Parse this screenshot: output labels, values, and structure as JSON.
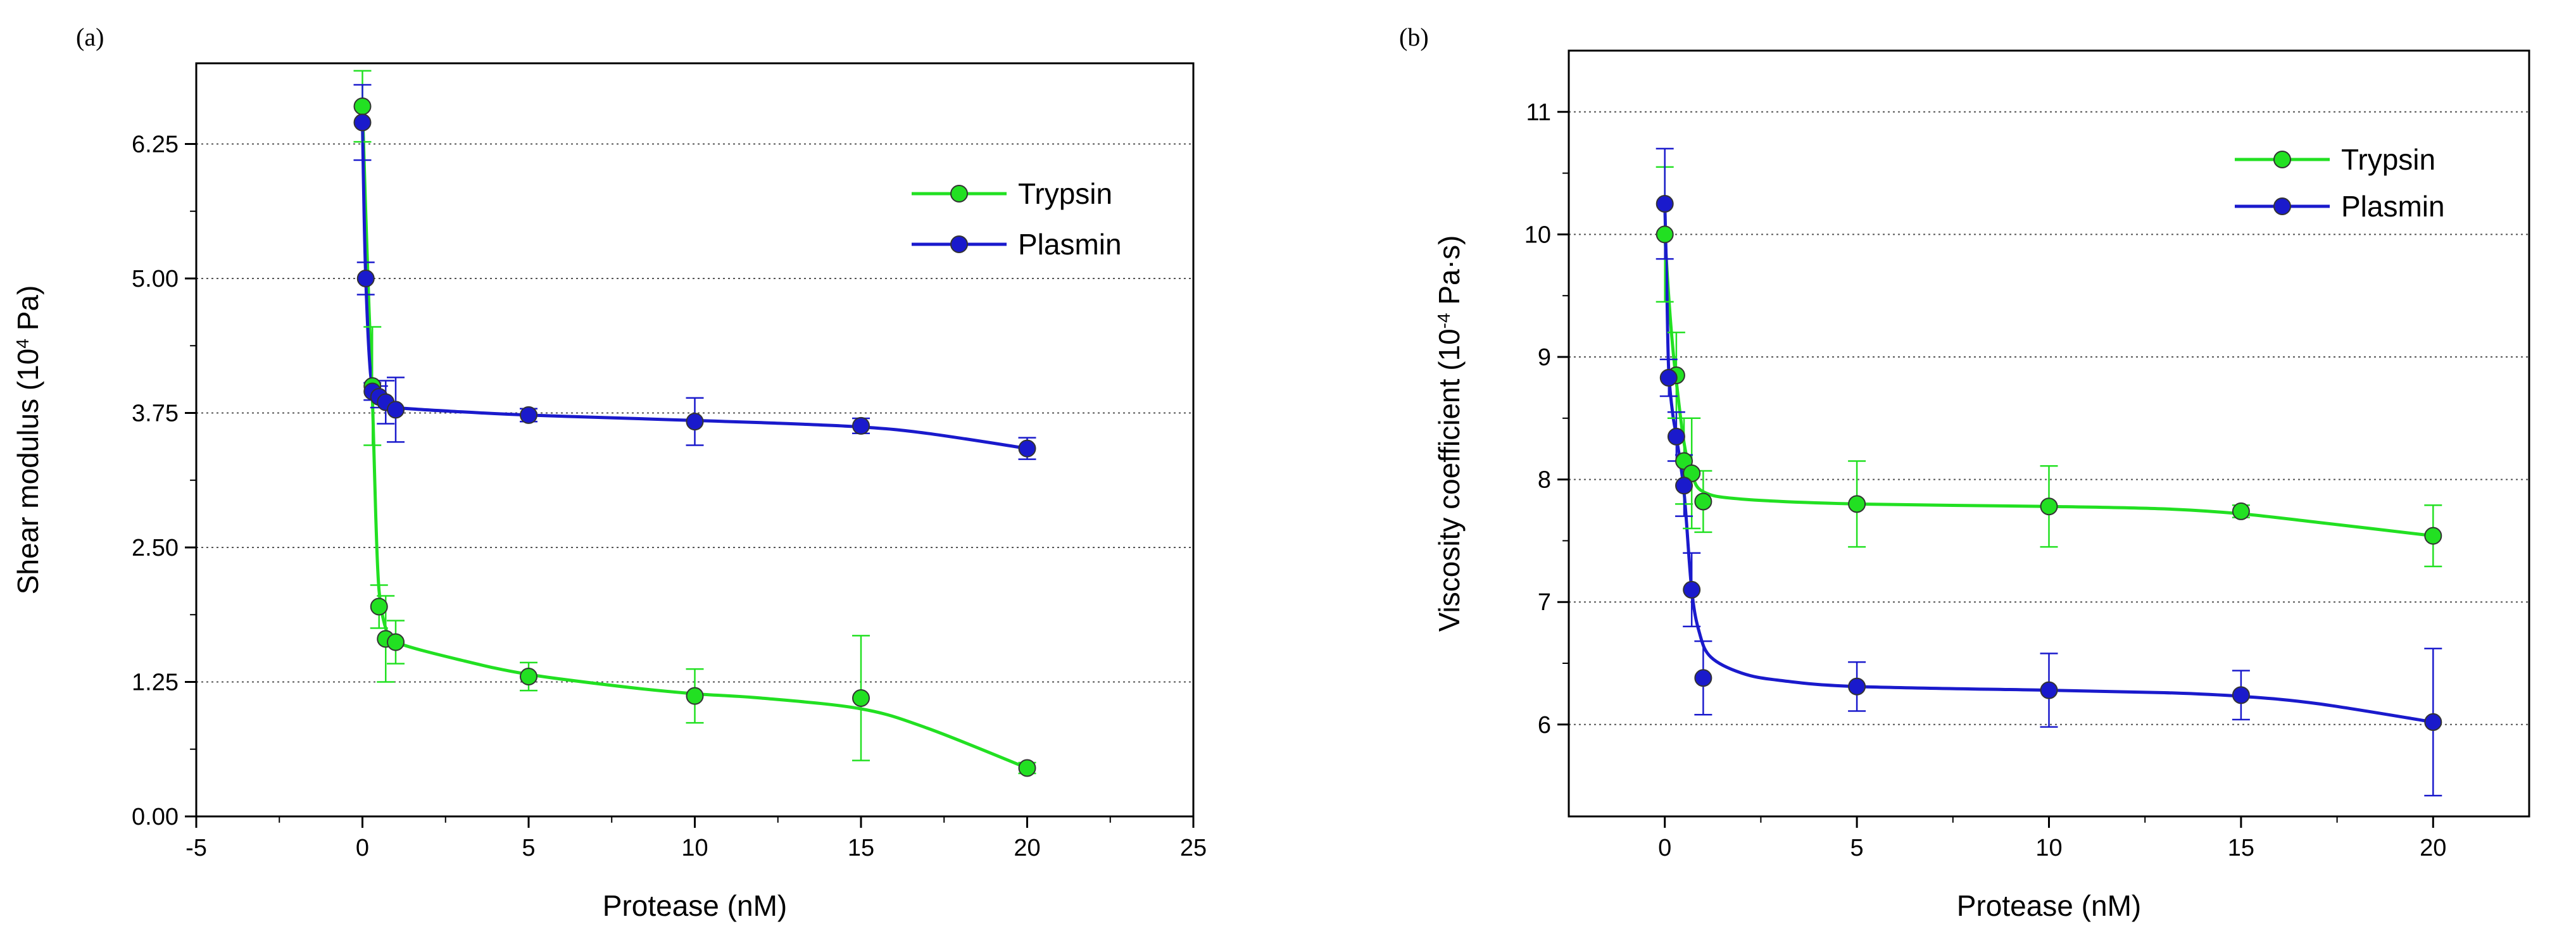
{
  "chart_data": [
    {
      "type": "scatter",
      "panel_label": "(a)",
      "xlabel": "Protease (nM)",
      "ylabel_parts": [
        "Shear modulus (10",
        "4",
        " Pa)"
      ],
      "xlim": [
        -5,
        25
      ],
      "ylim": [
        0,
        7
      ],
      "x_ticks": [
        -5,
        0,
        5,
        10,
        15,
        20,
        25
      ],
      "x_tick_labels": [
        "-5",
        "0",
        "5",
        "10",
        "15",
        "20",
        "25"
      ],
      "y_ticks": [
        0,
        1.25,
        2.5,
        3.75,
        5,
        6.25
      ],
      "y_tick_labels": [
        "0.00",
        "1.25",
        "2.50",
        "3.75",
        "5.00",
        "6.25"
      ],
      "grid_y": [
        1.25,
        2.5,
        3.75,
        5,
        6.25
      ],
      "legend_position": "top-right",
      "series": [
        {
          "name": "Trypsin",
          "color": "#22e022",
          "points": [
            {
              "x": 0,
              "y": 6.6,
              "err": 0.33
            },
            {
              "x": 0.3,
              "y": 4.0,
              "err": 0.55
            },
            {
              "x": 0.5,
              "y": 1.95,
              "err": 0.2
            },
            {
              "x": 0.7,
              "y": 1.65,
              "err": 0.4
            },
            {
              "x": 1,
              "y": 1.62,
              "err": 0.2
            },
            {
              "x": 5,
              "y": 1.3,
              "err": 0.13
            },
            {
              "x": 10,
              "y": 1.12,
              "err": 0.25
            },
            {
              "x": 15,
              "y": 1.1,
              "err": 0.58
            },
            {
              "x": 20,
              "y": 0.45,
              "err": 0.05
            }
          ],
          "curve": [
            [
              0,
              6.6
            ],
            [
              0.1,
              5.6
            ],
            [
              0.2,
              4.7
            ],
            [
              0.3,
              3.9
            ],
            [
              0.4,
              2.8
            ],
            [
              0.5,
              2.1
            ],
            [
              0.7,
              1.75
            ],
            [
              1,
              1.62
            ],
            [
              3,
              1.45
            ],
            [
              5,
              1.32
            ],
            [
              8,
              1.2
            ],
            [
              10,
              1.14
            ],
            [
              12,
              1.1
            ],
            [
              15,
              1.0
            ],
            [
              17,
              0.82
            ],
            [
              20,
              0.45
            ]
          ]
        },
        {
          "name": "Plasmin",
          "color": "#1a1acc",
          "points": [
            {
              "x": 0,
              "y": 6.45,
              "err": 0.35
            },
            {
              "x": 0.1,
              "y": 5.0,
              "err": 0.15
            },
            {
              "x": 0.3,
              "y": 3.95,
              "err": 0.08
            },
            {
              "x": 0.5,
              "y": 3.9,
              "err": 0.1
            },
            {
              "x": 0.7,
              "y": 3.85,
              "err": 0.2
            },
            {
              "x": 1,
              "y": 3.78,
              "err": 0.3
            },
            {
              "x": 5,
              "y": 3.73,
              "err": 0.06
            },
            {
              "x": 10,
              "y": 3.67,
              "err": 0.22
            },
            {
              "x": 15,
              "y": 3.63,
              "err": 0.07
            },
            {
              "x": 20,
              "y": 3.42,
              "err": 0.1
            }
          ],
          "curve": [
            [
              0,
              6.45
            ],
            [
              0.05,
              5.6
            ],
            [
              0.1,
              5.0
            ],
            [
              0.2,
              4.3
            ],
            [
              0.3,
              4.0
            ],
            [
              0.5,
              3.9
            ],
            [
              0.7,
              3.84
            ],
            [
              1,
              3.8
            ],
            [
              3,
              3.76
            ],
            [
              5,
              3.73
            ],
            [
              8,
              3.7
            ],
            [
              10,
              3.68
            ],
            [
              12,
              3.66
            ],
            [
              15,
              3.62
            ],
            [
              17,
              3.56
            ],
            [
              20,
              3.42
            ]
          ]
        }
      ]
    },
    {
      "type": "scatter",
      "panel_label": "(b)",
      "xlabel": "Protease (nM)",
      "ylabel_parts": [
        "Viscosity coefficient (10",
        "-4",
        " Pa·s)"
      ],
      "xlim": [
        -2.5,
        22.5
      ],
      "ylim": [
        5.25,
        11.5
      ],
      "x_ticks": [
        0,
        5,
        10,
        15,
        20
      ],
      "x_tick_labels": [
        "0",
        "5",
        "10",
        "15",
        "20"
      ],
      "y_ticks": [
        6,
        7,
        8,
        9,
        10,
        11
      ],
      "y_tick_labels": [
        "6",
        "7",
        "8",
        "9",
        "10",
        "11"
      ],
      "grid_y": [
        6,
        7,
        8,
        9,
        10,
        11
      ],
      "legend_position": "top-right",
      "series": [
        {
          "name": "Trypsin",
          "color": "#22e022",
          "points": [
            {
              "x": 0,
              "y": 10.0,
              "err": 0.55
            },
            {
              "x": 0.3,
              "y": 8.85,
              "err": 0.35
            },
            {
              "x": 0.5,
              "y": 8.15,
              "err": 0.35
            },
            {
              "x": 0.7,
              "y": 8.05,
              "err": 0.45
            },
            {
              "x": 1,
              "y": 7.82,
              "err": 0.25
            },
            {
              "x": 5,
              "y": 7.8,
              "err": 0.35
            },
            {
              "x": 10,
              "y": 7.78,
              "err": 0.33
            },
            {
              "x": 15,
              "y": 7.74,
              "err": 0.05
            },
            {
              "x": 20,
              "y": 7.54,
              "err": 0.25
            }
          ],
          "curve": [
            [
              0,
              10.0
            ],
            [
              0.1,
              9.5
            ],
            [
              0.2,
              9.1
            ],
            [
              0.3,
              8.8
            ],
            [
              0.5,
              8.3
            ],
            [
              0.7,
              8.05
            ],
            [
              1,
              7.9
            ],
            [
              2,
              7.84
            ],
            [
              5,
              7.8
            ],
            [
              10,
              7.78
            ],
            [
              13,
              7.76
            ],
            [
              15,
              7.72
            ],
            [
              17,
              7.65
            ],
            [
              20,
              7.54
            ]
          ]
        },
        {
          "name": "Plasmin",
          "color": "#1a1acc",
          "points": [
            {
              "x": 0,
              "y": 10.25,
              "err": 0.45
            },
            {
              "x": 0.1,
              "y": 8.83,
              "err": 0.15
            },
            {
              "x": 0.3,
              "y": 8.35,
              "err": 0.2
            },
            {
              "x": 0.5,
              "y": 7.95,
              "err": 0.25
            },
            {
              "x": 0.7,
              "y": 7.1,
              "err": 0.3
            },
            {
              "x": 1,
              "y": 6.38,
              "err": 0.3
            },
            {
              "x": 5,
              "y": 6.31,
              "err": 0.2
            },
            {
              "x": 10,
              "y": 6.28,
              "err": 0.3
            },
            {
              "x": 15,
              "y": 6.24,
              "err": 0.2
            },
            {
              "x": 20,
              "y": 6.02,
              "err": 0.6
            }
          ],
          "curve": [
            [
              0,
              10.25
            ],
            [
              0.05,
              9.6
            ],
            [
              0.1,
              8.9
            ],
            [
              0.2,
              8.55
            ],
            [
              0.3,
              8.35
            ],
            [
              0.5,
              7.9
            ],
            [
              0.7,
              7.1
            ],
            [
              0.9,
              6.75
            ],
            [
              1.2,
              6.55
            ],
            [
              2,
              6.42
            ],
            [
              3,
              6.36
            ],
            [
              5,
              6.31
            ],
            [
              10,
              6.28
            ],
            [
              13,
              6.26
            ],
            [
              15,
              6.23
            ],
            [
              17,
              6.17
            ],
            [
              20,
              6.02
            ]
          ]
        }
      ]
    }
  ]
}
